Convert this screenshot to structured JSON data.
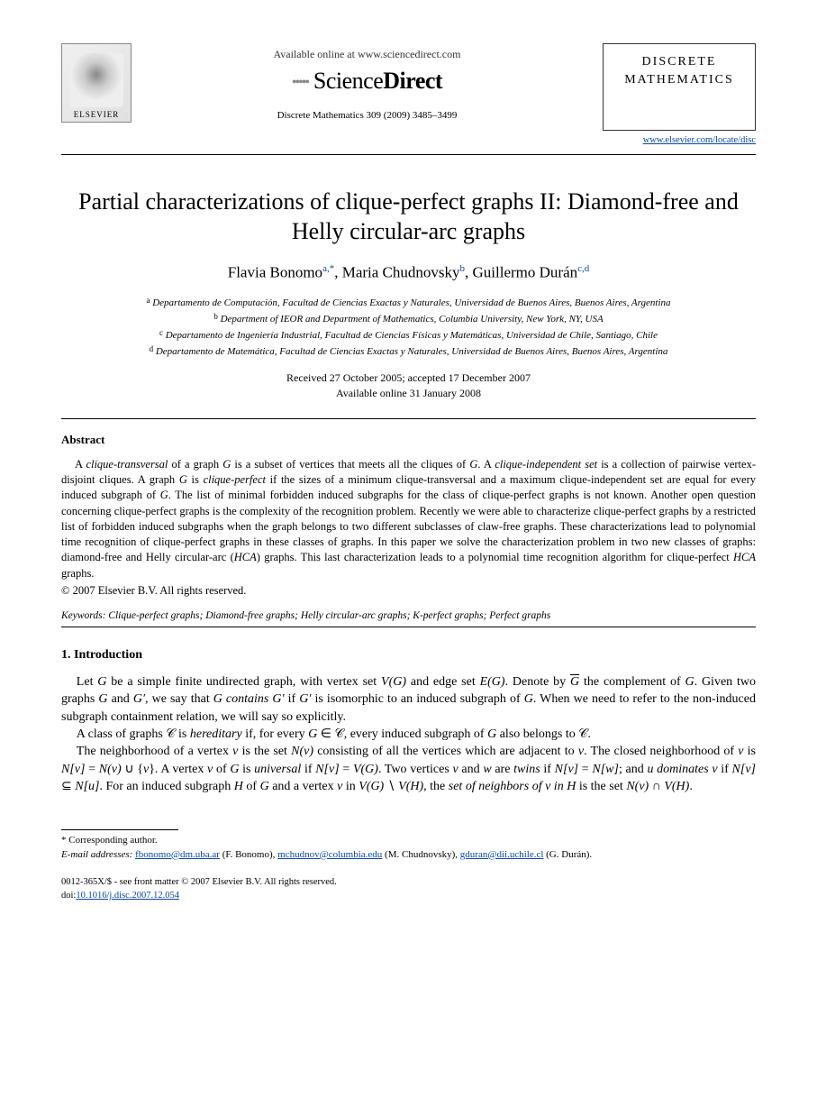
{
  "header": {
    "elsevier_label": "ELSEVIER",
    "available_online": "Available online at www.sciencedirect.com",
    "sd_science": "Science",
    "sd_direct": "Direct",
    "journal_ref": "Discrete Mathematics 309 (2009) 3485–3499",
    "journal_name_line1": "DISCRETE",
    "journal_name_line2": "MATHEMATICS",
    "journal_url": "www.elsevier.com/locate/disc"
  },
  "title": "Partial characterizations of clique-perfect graphs II: Diamond-free and Helly circular-arc graphs",
  "authors_html": "Flavia Bonomo<sup>a,*</sup>, Maria Chudnovsky<sup>b</sup>, Guillermo Durán<sup>c,d</sup>",
  "affiliations": [
    "Departamento de Computación, Facultad de Ciencias Exactas y Naturales, Universidad de Buenos Aires, Buenos Aires, Argentina",
    "Department of IEOR and Department of Mathematics, Columbia University, New York, NY, USA",
    "Departamento de Ingeniería Industrial, Facultad de Ciencias Físicas y Matemáticas, Universidad de Chile, Santiago, Chile",
    "Departamento de Matemática, Facultad de Ciencias Exactas y Naturales, Universidad de Buenos Aires, Buenos Aires, Argentina"
  ],
  "aff_markers": [
    "a",
    "b",
    "c",
    "d"
  ],
  "dates": {
    "line1": "Received 27 October 2005; accepted 17 December 2007",
    "line2": "Available online 31 January 2008"
  },
  "abstract": {
    "heading": "Abstract",
    "body_html": "A <i>clique-transversal</i> of a graph <i>G</i> is a subset of vertices that meets all the cliques of <i>G</i>. A <i>clique-independent set</i> is a collection of pairwise vertex-disjoint cliques. A graph <i>G</i> is <i>clique-perfect</i> if the sizes of a minimum clique-transversal and a maximum clique-independent set are equal for every induced subgraph of <i>G</i>. The list of minimal forbidden induced subgraphs for the class of clique-perfect graphs is not known. Another open question concerning clique-perfect graphs is the complexity of the recognition problem. Recently we were able to characterize clique-perfect graphs by a restricted list of forbidden induced subgraphs when the graph belongs to two different subclasses of claw-free graphs. These characterizations lead to polynomial time recognition of clique-perfect graphs in these classes of graphs. In this paper we solve the characterization problem in two new classes of graphs: diamond-free and Helly circular-arc (<i>HCA</i>) graphs. This last characterization leads to a polynomial time recognition algorithm for clique-perfect <i>HCA</i> graphs.",
    "copyright": "© 2007 Elsevier B.V. All rights reserved."
  },
  "keywords": {
    "label": "Keywords:",
    "text": "Clique-perfect graphs; Diamond-free graphs; Helly circular-arc graphs; K-perfect graphs; Perfect graphs"
  },
  "section1": {
    "heading": "1.  Introduction",
    "p1_html": "Let <i>G</i> be a simple finite undirected graph, with vertex set <i>V(G)</i> and edge set <i>E(G)</i>. Denote by <span style='text-decoration:overline'><i>G</i></span> the complement of <i>G</i>. Given two graphs <i>G</i> and <i>G′</i>, we say that <i>G contains G′</i> if <i>G′</i> is isomorphic to an induced subgraph of <i>G</i>. When we need to refer to the non-induced subgraph containment relation, we will say so explicitly.",
    "p2_html": "A class of graphs 𝒞 is <i>hereditary</i> if, for every <i>G</i> ∈ 𝒞, every induced subgraph of <i>G</i> also belongs to 𝒞.",
    "p3_html": "The neighborhood of a vertex <i>v</i> is the set <i>N(v)</i> consisting of all the vertices which are adjacent to <i>v</i>. The closed neighborhood of <i>v</i> is <i>N[v]</i> = <i>N(v)</i> ∪ {<i>v</i>}. A vertex <i>v</i> of <i>G</i> is <i>universal</i> if <i>N[v]</i> = <i>V(G)</i>. Two vertices <i>v</i> and <i>w</i> are <i>twins</i> if <i>N[v]</i> = <i>N[w]</i>; and <i>u dominates v</i> if <i>N[v]</i> ⊆ <i>N[u]</i>. For an induced subgraph <i>H</i> of <i>G</i> and a vertex <i>v</i> in <i>V(G)</i> ∖ <i>V(H)</i>, the <i>set of neighbors of v in H</i> is the set <i>N(v)</i> ∩ <i>V(H)</i>."
  },
  "footnotes": {
    "corresponding": "* Corresponding author.",
    "email_label": "E-mail addresses:",
    "emails": [
      {
        "addr": "fbonomo@dm.uba.ar",
        "who": "(F. Bonomo)"
      },
      {
        "addr": "mchudnov@columbia.edu",
        "who": "(M. Chudnovsky)"
      },
      {
        "addr": "gduran@dii.uchile.cl",
        "who": "(G. Durán)"
      }
    ]
  },
  "footer": {
    "line1": "0012-365X/$ - see front matter © 2007 Elsevier B.V. All rights reserved.",
    "doi_label": "doi:",
    "doi": "10.1016/j.disc.2007.12.054"
  },
  "colors": {
    "text": "#000000",
    "link": "#0645ad",
    "background": "#ffffff",
    "rule": "#000000"
  },
  "typography": {
    "body_font": "Times New Roman",
    "title_size_pt": 20,
    "author_size_pt": 13,
    "body_size_pt": 10.5,
    "abstract_size_pt": 9.5,
    "footnote_size_pt": 8.5
  }
}
